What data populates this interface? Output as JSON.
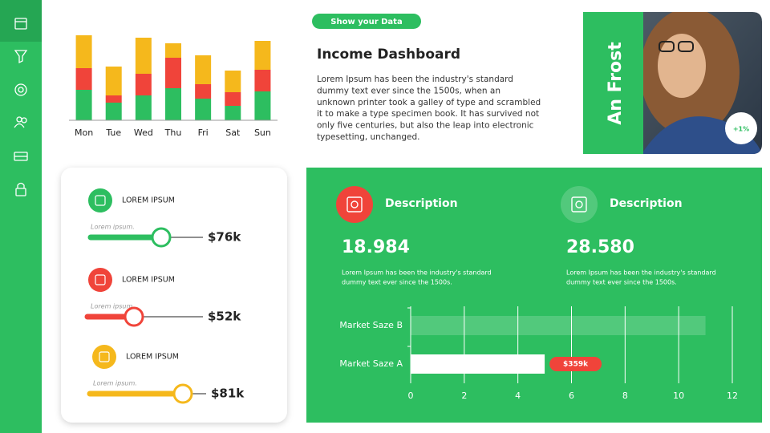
{
  "header": {
    "button": "Show your Data",
    "title": "Income Dashboard",
    "body": [
      "Lorem Ipsum has been the industry's standard",
      "dummy text ever since the 1500s, when an",
      "unknown printer took a galley of type and scrambled",
      "it to make a type specimen book. It has survived not",
      "only five centuries, but also the leap into electronic",
      "typesetting, unchanged."
    ]
  },
  "profile": {
    "name": "An Frost",
    "badge": "+1%"
  },
  "sliders": [
    {
      "label": "LOREM IPSUM",
      "sublabel": "Lorem ipsum.",
      "value": "$76k"
    },
    {
      "label": "LOREM IPSUM",
      "sublabel": "Lorem ipsum.",
      "value": "$52k"
    },
    {
      "label": "LOREM IPSUM",
      "sublabel": "Lorem ipsum.",
      "value": "$81k"
    }
  ],
  "stats": [
    {
      "title": "Description",
      "value": "18.984",
      "text": [
        "Lorem Ipsum has been the industry's standard",
        "dummy text ever since the 1500s."
      ]
    },
    {
      "title": "Description",
      "value": "28.580",
      "text": [
        "Lorem Ipsum has been the industry's standard",
        "dummy text ever since the 1500s."
      ]
    }
  ],
  "chart_data": [
    {
      "type": "bar",
      "stacked": true,
      "categories": [
        "Mon",
        "Tue",
        "Wed",
        "Thu",
        "Fri",
        "Sat",
        "Sun"
      ],
      "series": [
        {
          "color": "#2dbe60",
          "values": [
            38,
            22,
            31,
            40,
            27,
            18,
            36
          ]
        },
        {
          "color": "#f0443a",
          "values": [
            27,
            9,
            27,
            38,
            18,
            17,
            27
          ]
        },
        {
          "color": "#f5b81c",
          "values": [
            41,
            36,
            45,
            18,
            36,
            27,
            36
          ]
        }
      ],
      "ylim": [
        0,
        110
      ]
    },
    {
      "type": "bar",
      "orientation": "horizontal",
      "categories": [
        "Market Saze B",
        "Market Saze A"
      ],
      "values": [
        11,
        5
      ],
      "colors": [
        "rgba(255,255,255,0.18)",
        "#ffffff"
      ],
      "xlim": [
        0,
        12
      ],
      "xticks": [
        0,
        2,
        4,
        6,
        8,
        10,
        12
      ],
      "grid": true,
      "annotation": "$359k"
    }
  ]
}
